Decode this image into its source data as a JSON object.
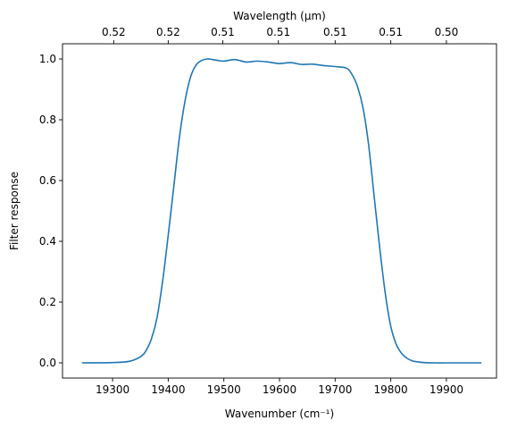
{
  "chart_data": {
    "type": "line",
    "xlabel": "Wavenumber (cm⁻¹)",
    "ylabel": "Filter response",
    "top_xlabel": "Wavelength (μm)",
    "xlim": [
      19210,
      19990
    ],
    "ylim": [
      -0.05,
      1.05
    ],
    "x_ticks": [
      19300,
      19400,
      19500,
      19600,
      19700,
      19800,
      19900
    ],
    "y_ticks": [
      0.0,
      0.2,
      0.4,
      0.6,
      0.8,
      1.0
    ],
    "y_tick_labels": [
      "0.0",
      "0.2",
      "0.4",
      "0.6",
      "0.8",
      "1.0"
    ],
    "top_ticks": [
      {
        "x": 19302,
        "label": "0.52"
      },
      {
        "x": 19400,
        "label": "0.52"
      },
      {
        "x": 19498,
        "label": "0.51"
      },
      {
        "x": 19598,
        "label": "0.51"
      },
      {
        "x": 19700,
        "label": "0.51"
      },
      {
        "x": 19800,
        "label": "0.51"
      },
      {
        "x": 19900,
        "label": "0.50"
      }
    ],
    "grid": false,
    "line_color": "#1f77b4",
    "series": [
      {
        "x": [
          19245,
          19300,
          19330,
          19350,
          19360,
          19370,
          19380,
          19390,
          19400,
          19410,
          19420,
          19430,
          19440,
          19450,
          19460,
          19470,
          19480,
          19490,
          19500,
          19520,
          19540,
          19560,
          19580,
          19600,
          19620,
          19640,
          19660,
          19680,
          19700,
          19720,
          19730,
          19740,
          19750,
          19760,
          19770,
          19780,
          19790,
          19800,
          19810,
          19820,
          19830,
          19840,
          19850,
          19860,
          19880,
          19900,
          19963
        ],
        "y": [
          0.0,
          0.001,
          0.005,
          0.02,
          0.04,
          0.08,
          0.15,
          0.27,
          0.42,
          0.58,
          0.74,
          0.86,
          0.94,
          0.98,
          0.995,
          1.0,
          0.998,
          0.995,
          0.993,
          0.998,
          0.99,
          0.993,
          0.99,
          0.985,
          0.988,
          0.982,
          0.983,
          0.978,
          0.975,
          0.97,
          0.95,
          0.91,
          0.84,
          0.72,
          0.55,
          0.38,
          0.23,
          0.12,
          0.06,
          0.03,
          0.014,
          0.006,
          0.003,
          0.001,
          0.0,
          0.0,
          0.0
        ]
      }
    ]
  }
}
